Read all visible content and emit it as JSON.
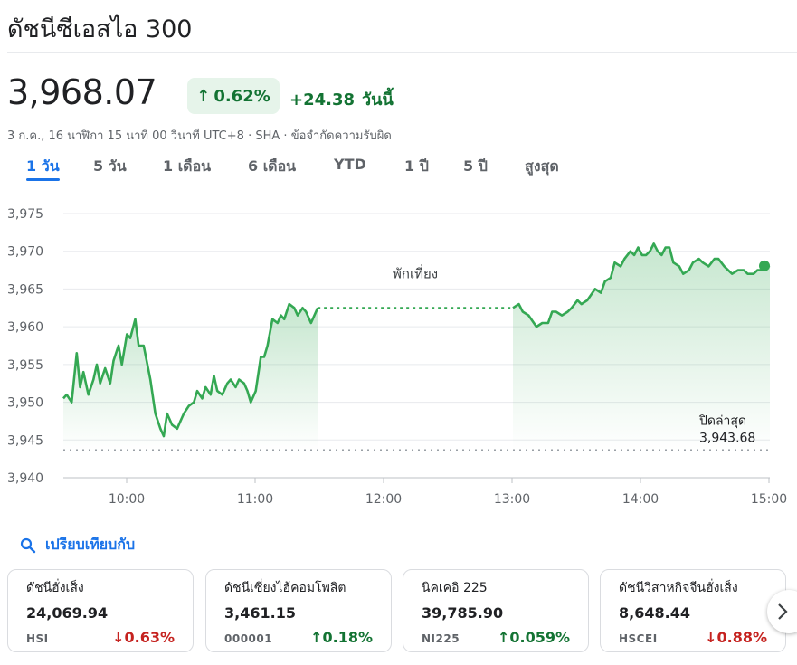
{
  "header": {
    "title": "ดัชนีซีเอสไอ 300"
  },
  "quote": {
    "price": "3,968.07",
    "change_percent": "0.62%",
    "change_abs": "+24.38",
    "change_period": "วันนี้",
    "timestamp": "3 ก.ค., 16 นาฬิกา 15 นาที 00 วินาที UTC+8",
    "exchange": "SHA",
    "disclaimer": "ข้อจำกัดความรับผิด",
    "separator": "·"
  },
  "tabs": [
    {
      "label": "1 วัน",
      "active": true
    },
    {
      "label": "5 วัน",
      "active": false
    },
    {
      "label": "1 เดือน",
      "active": false
    },
    {
      "label": "6 เดือน",
      "active": false
    },
    {
      "label": "YTD",
      "active": false
    },
    {
      "label": "1 ปี",
      "active": false
    },
    {
      "label": "5 ปี",
      "active": false
    },
    {
      "label": "สูงสุด",
      "active": false
    }
  ],
  "chart_data": {
    "type": "line",
    "ylim": [
      3940,
      3975
    ],
    "yticks": [
      "3,940",
      "3,945",
      "3,950",
      "3,955",
      "3,960",
      "3,965",
      "3,970",
      "3,975"
    ],
    "xticks": [
      "10:00",
      "11:00",
      "12:00",
      "13:00",
      "14:00",
      "15:00"
    ],
    "xlim_hours": [
      9.5,
      15.0
    ],
    "series": [
      {
        "morning": [
          [
            9.5,
            3950.5
          ],
          [
            9.52,
            3951
          ],
          [
            9.55,
            3950
          ],
          [
            9.58,
            3956.5
          ],
          [
            9.6,
            3952
          ],
          [
            9.62,
            3954
          ],
          [
            9.65,
            3951
          ],
          [
            9.68,
            3953
          ],
          [
            9.7,
            3955
          ],
          [
            9.72,
            3952.5
          ],
          [
            9.75,
            3954.5
          ],
          [
            9.78,
            3952.5
          ],
          [
            9.8,
            3955.5
          ],
          [
            9.83,
            3957.5
          ],
          [
            9.85,
            3955
          ],
          [
            9.88,
            3959
          ],
          [
            9.9,
            3958.5
          ],
          [
            9.93,
            3961
          ],
          [
            9.95,
            3957.5
          ],
          [
            9.98,
            3957.5
          ],
          [
            10.02,
            3953
          ],
          [
            10.05,
            3948.5
          ],
          [
            10.08,
            3946.5
          ],
          [
            10.1,
            3945.5
          ],
          [
            10.12,
            3948.5
          ],
          [
            10.15,
            3947
          ],
          [
            10.18,
            3946.5
          ],
          [
            10.2,
            3947.5
          ],
          [
            10.22,
            3948.5
          ],
          [
            10.25,
            3949.5
          ],
          [
            10.28,
            3950
          ],
          [
            10.3,
            3951.5
          ],
          [
            10.33,
            3950.5
          ],
          [
            10.35,
            3952
          ],
          [
            10.38,
            3951
          ],
          [
            10.4,
            3953.5
          ],
          [
            10.42,
            3951.5
          ],
          [
            10.45,
            3951
          ],
          [
            10.48,
            3952.5
          ],
          [
            10.5,
            3953
          ],
          [
            10.53,
            3952
          ],
          [
            10.55,
            3953
          ],
          [
            10.58,
            3952.5
          ],
          [
            10.6,
            3951.5
          ],
          [
            10.62,
            3950
          ],
          [
            10.65,
            3951.5
          ],
          [
            10.68,
            3956
          ],
          [
            10.7,
            3956
          ],
          [
            10.72,
            3957.5
          ],
          [
            10.75,
            3961
          ],
          [
            10.78,
            3960.5
          ],
          [
            10.8,
            3961.5
          ],
          [
            10.82,
            3961
          ],
          [
            10.85,
            3963
          ],
          [
            10.88,
            3962.5
          ],
          [
            10.9,
            3961.5
          ],
          [
            10.93,
            3962.5
          ],
          [
            10.95,
            3962
          ],
          [
            10.98,
            3960.5
          ],
          [
            11.0,
            3961.5
          ],
          [
            11.02,
            3962.5
          ]
        ],
        "afternoon": [
          [
            13.0,
            3962.5
          ],
          [
            13.03,
            3963
          ],
          [
            13.05,
            3962
          ],
          [
            13.08,
            3961.5
          ],
          [
            13.12,
            3960
          ],
          [
            13.15,
            3960.5
          ],
          [
            13.18,
            3960.5
          ],
          [
            13.2,
            3962
          ],
          [
            13.22,
            3962
          ],
          [
            13.25,
            3961.5
          ],
          [
            13.28,
            3962
          ],
          [
            13.3,
            3962.5
          ],
          [
            13.33,
            3963.5
          ],
          [
            13.35,
            3963
          ],
          [
            13.38,
            3963.5
          ],
          [
            13.42,
            3965
          ],
          [
            13.45,
            3964.5
          ],
          [
            13.47,
            3966
          ],
          [
            13.5,
            3966.5
          ],
          [
            13.52,
            3968.5
          ],
          [
            13.55,
            3968
          ],
          [
            13.57,
            3969
          ],
          [
            13.6,
            3970
          ],
          [
            13.62,
            3969.5
          ],
          [
            13.64,
            3970.5
          ],
          [
            13.66,
            3969.5
          ],
          [
            13.68,
            3969.5
          ],
          [
            13.7,
            3970
          ],
          [
            13.72,
            3971
          ],
          [
            13.74,
            3970
          ],
          [
            13.76,
            3969.5
          ],
          [
            13.78,
            3970.5
          ],
          [
            13.8,
            3970.5
          ],
          [
            13.82,
            3968.5
          ],
          [
            13.85,
            3968
          ],
          [
            13.87,
            3967
          ],
          [
            13.9,
            3967.5
          ],
          [
            13.92,
            3968.5
          ],
          [
            13.95,
            3969
          ],
          [
            13.97,
            3968.5
          ],
          [
            14.0,
            3968
          ],
          [
            14.03,
            3969
          ],
          [
            14.05,
            3969
          ],
          [
            14.08,
            3968
          ],
          [
            14.1,
            3967.5
          ],
          [
            14.12,
            3967
          ],
          [
            14.15,
            3967.5
          ],
          [
            14.18,
            3967.5
          ],
          [
            14.2,
            3967
          ],
          [
            14.23,
            3967
          ],
          [
            14.25,
            3967.5
          ],
          [
            14.28,
            3967.5
          ],
          [
            14.3,
            3968
          ]
        ]
      }
    ],
    "last_point": [
      15.0,
      3968.07
    ],
    "break_label": "พักเที่ยง",
    "prev_close_label": "ปิดล่าสุด",
    "prev_close_value": "3,943.68",
    "prev_close": 3943.68,
    "colors": {
      "line": "#34a853",
      "fill": "#e6f4ea",
      "break": "#34a853",
      "grid": "#e8eaed",
      "prev_close": "#9aa0a6"
    }
  },
  "compare": {
    "label": "เปรียบเทียบกับ",
    "icon": "search-icon"
  },
  "related": [
    {
      "name": "ดัชนีฮั่งเส็ง",
      "value": "24,069.94",
      "symbol": "HSI",
      "change": "0.63%",
      "direction": "down"
    },
    {
      "name": "ดัชนีเซี่ยงไฮ้คอมโพสิต",
      "value": "3,461.15",
      "symbol": "000001",
      "change": "0.18%",
      "direction": "up"
    },
    {
      "name": "นิคเคอิ 225",
      "value": "39,785.90",
      "symbol": "NI225",
      "change": "0.059%",
      "direction": "up"
    },
    {
      "name": "ดัชนีวิสาหกิจจีนฮั่งเส็ง",
      "value": "8,648.44",
      "symbol": "HSCEI",
      "change": "0.88%",
      "direction": "down"
    }
  ],
  "arrows": {
    "up": "↑",
    "down": "↓"
  },
  "carousel": {
    "next_icon": "chevron-right-icon"
  }
}
